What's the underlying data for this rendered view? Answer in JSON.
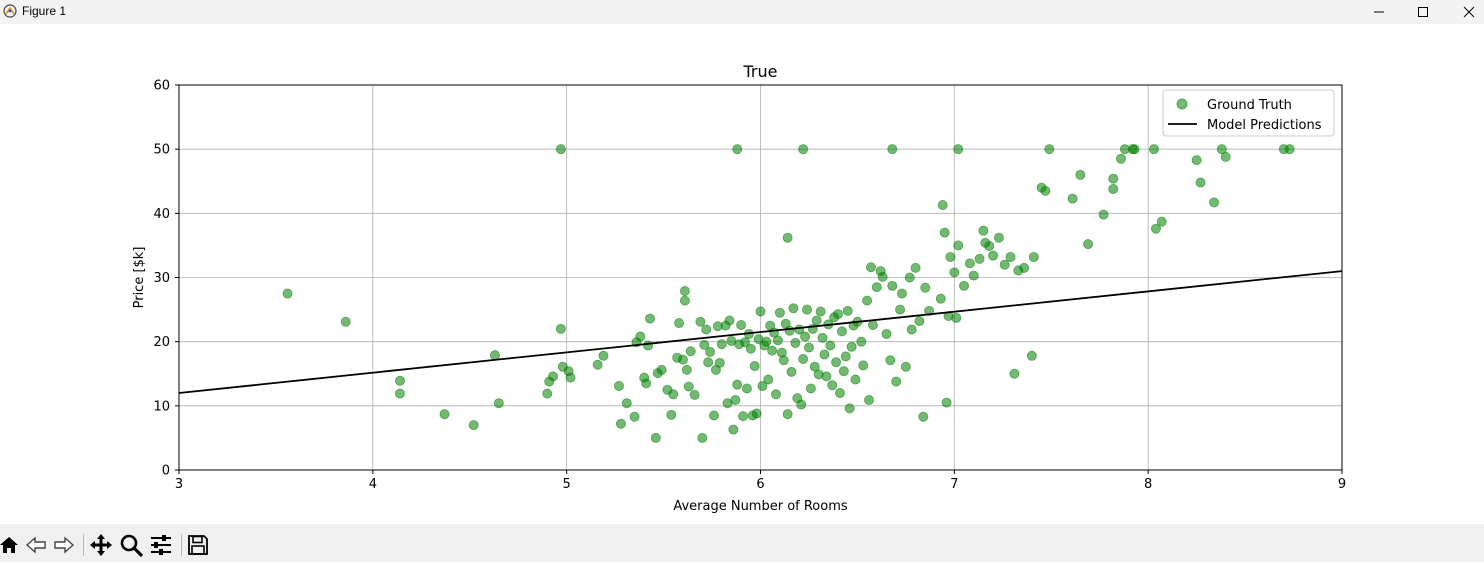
{
  "window": {
    "title": "Figure 1",
    "controls": [
      "minimize-icon",
      "maximize-icon",
      "close-icon"
    ]
  },
  "toolbar": {
    "buttons": [
      "home-icon",
      "back-icon",
      "forward-icon",
      "pan-icon",
      "zoom-icon",
      "configure-subplots-icon",
      "save-icon"
    ]
  },
  "colors": {
    "points": "#008000",
    "line": "#000000",
    "grid": "#b0b0b0"
  },
  "chart_data": {
    "type": "scatter",
    "title": "True",
    "xlabel": "Average Number of Rooms",
    "ylabel": "Price [$k]",
    "xlim": [
      3,
      9
    ],
    "ylim": [
      0,
      60
    ],
    "xticks": [
      "3",
      "4",
      "5",
      "6",
      "7",
      "8",
      "9"
    ],
    "yticks": [
      "0",
      "10",
      "20",
      "30",
      "40",
      "50",
      "60"
    ],
    "grid": true,
    "legend_position": "top-right",
    "series": [
      {
        "name": "Ground Truth",
        "kind": "scatter",
        "color": "#008000",
        "points": [
          [
            3.56,
            27.5
          ],
          [
            3.86,
            23.1
          ],
          [
            4.14,
            13.9
          ],
          [
            4.14,
            11.9
          ],
          [
            4.37,
            8.7
          ],
          [
            4.52,
            7.0
          ],
          [
            4.63,
            17.9
          ],
          [
            4.65,
            10.4
          ],
          [
            4.9,
            11.9
          ],
          [
            4.91,
            13.8
          ],
          [
            4.93,
            14.6
          ],
          [
            4.97,
            22.0
          ],
          [
            4.98,
            16.1
          ],
          [
            5.01,
            15.4
          ],
          [
            5.02,
            14.4
          ],
          [
            4.97,
            50.0
          ],
          [
            5.88,
            50.0
          ],
          [
            6.22,
            50.0
          ],
          [
            6.68,
            50.0
          ],
          [
            7.02,
            50.0
          ],
          [
            7.49,
            50.0
          ],
          [
            5.16,
            16.4
          ],
          [
            5.19,
            17.8
          ],
          [
            5.27,
            13.1
          ],
          [
            5.28,
            7.2
          ],
          [
            5.31,
            10.4
          ],
          [
            5.35,
            8.3
          ],
          [
            5.36,
            19.9
          ],
          [
            5.38,
            20.8
          ],
          [
            5.4,
            14.4
          ],
          [
            5.41,
            13.5
          ],
          [
            5.42,
            19.4
          ],
          [
            5.43,
            23.6
          ],
          [
            5.46,
            5.0
          ],
          [
            5.47,
            15.1
          ],
          [
            5.49,
            15.6
          ],
          [
            5.52,
            12.5
          ],
          [
            5.54,
            8.6
          ],
          [
            5.55,
            11.8
          ],
          [
            5.57,
            17.5
          ],
          [
            5.58,
            22.9
          ],
          [
            5.6,
            17.2
          ],
          [
            5.61,
            26.4
          ],
          [
            5.61,
            27.9
          ],
          [
            5.62,
            15.6
          ],
          [
            5.63,
            13.0
          ],
          [
            5.64,
            18.5
          ],
          [
            5.66,
            11.7
          ],
          [
            5.69,
            23.1
          ],
          [
            5.7,
            5.0
          ],
          [
            5.71,
            19.5
          ],
          [
            5.72,
            21.9
          ],
          [
            5.73,
            16.8
          ],
          [
            5.74,
            18.4
          ],
          [
            5.76,
            8.5
          ],
          [
            5.77,
            15.6
          ],
          [
            5.78,
            22.4
          ],
          [
            5.79,
            16.7
          ],
          [
            5.8,
            19.6
          ],
          [
            5.82,
            22.5
          ],
          [
            5.83,
            10.4
          ],
          [
            5.84,
            23.3
          ],
          [
            5.85,
            20.1
          ],
          [
            5.86,
            6.3
          ],
          [
            5.87,
            10.9
          ],
          [
            5.88,
            13.3
          ],
          [
            5.89,
            19.6
          ],
          [
            5.9,
            22.6
          ],
          [
            5.91,
            8.4
          ],
          [
            5.92,
            19.9
          ],
          [
            5.93,
            12.7
          ],
          [
            5.94,
            21.2
          ],
          [
            5.95,
            18.9
          ],
          [
            5.96,
            8.5
          ],
          [
            5.97,
            16.2
          ],
          [
            5.98,
            8.8
          ],
          [
            5.99,
            20.4
          ],
          [
            6.0,
            24.7
          ],
          [
            6.01,
            13.1
          ],
          [
            6.02,
            19.4
          ],
          [
            6.03,
            20.0
          ],
          [
            6.04,
            14.1
          ],
          [
            6.05,
            22.5
          ],
          [
            6.06,
            18.6
          ],
          [
            6.07,
            21.4
          ],
          [
            6.08,
            11.8
          ],
          [
            6.09,
            20.2
          ],
          [
            6.1,
            24.5
          ],
          [
            6.11,
            18.3
          ],
          [
            6.12,
            17.1
          ],
          [
            6.13,
            22.8
          ],
          [
            6.14,
            8.7
          ],
          [
            6.14,
            36.2
          ],
          [
            6.15,
            21.7
          ],
          [
            6.16,
            15.3
          ],
          [
            6.17,
            25.2
          ],
          [
            6.18,
            19.8
          ],
          [
            6.19,
            11.2
          ],
          [
            6.2,
            21.9
          ],
          [
            6.21,
            10.2
          ],
          [
            6.22,
            17.3
          ],
          [
            6.23,
            20.8
          ],
          [
            6.24,
            25.0
          ],
          [
            6.25,
            19.1
          ],
          [
            6.26,
            12.7
          ],
          [
            6.27,
            22.0
          ],
          [
            6.28,
            16.1
          ],
          [
            6.29,
            23.3
          ],
          [
            6.3,
            14.9
          ],
          [
            6.31,
            24.7
          ],
          [
            6.32,
            20.6
          ],
          [
            6.33,
            18.0
          ],
          [
            6.34,
            14.6
          ],
          [
            6.35,
            22.7
          ],
          [
            6.36,
            19.4
          ],
          [
            6.37,
            13.2
          ],
          [
            6.38,
            23.8
          ],
          [
            6.39,
            16.8
          ],
          [
            6.4,
            24.3
          ],
          [
            6.41,
            12.0
          ],
          [
            6.42,
            21.6
          ],
          [
            6.43,
            15.4
          ],
          [
            6.44,
            17.7
          ],
          [
            6.45,
            24.8
          ],
          [
            6.46,
            9.6
          ],
          [
            6.47,
            19.2
          ],
          [
            6.48,
            22.5
          ],
          [
            6.49,
            14.1
          ],
          [
            6.5,
            23.1
          ],
          [
            6.52,
            20.0
          ],
          [
            6.53,
            16.3
          ],
          [
            6.55,
            26.4
          ],
          [
            6.56,
            10.9
          ],
          [
            6.57,
            31.6
          ],
          [
            6.58,
            22.6
          ],
          [
            6.6,
            28.5
          ],
          [
            6.62,
            31.0
          ],
          [
            6.63,
            30.1
          ],
          [
            6.65,
            21.2
          ],
          [
            6.67,
            17.1
          ],
          [
            6.68,
            28.7
          ],
          [
            6.7,
            13.8
          ],
          [
            6.72,
            25.0
          ],
          [
            6.73,
            27.5
          ],
          [
            6.75,
            16.1
          ],
          [
            6.77,
            30.0
          ],
          [
            6.78,
            21.9
          ],
          [
            6.8,
            31.5
          ],
          [
            6.82,
            23.2
          ],
          [
            6.84,
            8.3
          ],
          [
            6.85,
            28.4
          ],
          [
            6.87,
            24.8
          ],
          [
            6.93,
            26.7
          ],
          [
            6.94,
            41.3
          ],
          [
            6.95,
            37.0
          ],
          [
            6.96,
            10.5
          ],
          [
            6.97,
            24.0
          ],
          [
            6.98,
            33.2
          ],
          [
            7.0,
            30.8
          ],
          [
            7.01,
            23.7
          ],
          [
            7.02,
            35.0
          ],
          [
            7.05,
            28.7
          ],
          [
            7.08,
            32.2
          ],
          [
            7.1,
            30.3
          ],
          [
            7.13,
            32.9
          ],
          [
            7.15,
            37.3
          ],
          [
            7.16,
            35.4
          ],
          [
            7.18,
            34.9
          ],
          [
            7.2,
            33.4
          ],
          [
            7.23,
            36.2
          ],
          [
            7.26,
            32.0
          ],
          [
            7.29,
            33.2
          ],
          [
            7.31,
            15.0
          ],
          [
            7.33,
            31.1
          ],
          [
            7.36,
            31.5
          ],
          [
            7.4,
            17.8
          ],
          [
            7.41,
            33.2
          ],
          [
            7.45,
            44.0
          ],
          [
            7.47,
            43.5
          ],
          [
            7.61,
            42.3
          ],
          [
            7.65,
            46.0
          ],
          [
            7.69,
            35.2
          ],
          [
            7.77,
            39.8
          ],
          [
            7.82,
            45.4
          ],
          [
            7.82,
            43.8
          ],
          [
            7.86,
            48.5
          ],
          [
            7.88,
            50.0
          ],
          [
            7.92,
            50.0
          ],
          [
            7.93,
            50.0
          ],
          [
            8.03,
            50.0
          ],
          [
            8.04,
            37.6
          ],
          [
            8.07,
            38.7
          ],
          [
            8.25,
            48.3
          ],
          [
            8.27,
            44.8
          ],
          [
            8.34,
            41.7
          ],
          [
            8.38,
            50.0
          ],
          [
            8.4,
            48.8
          ],
          [
            8.7,
            50.0
          ],
          [
            8.73,
            50.0
          ]
        ]
      },
      {
        "name": "Model Predictions",
        "kind": "line",
        "color": "#000000",
        "points": [
          [
            3,
            12.0
          ],
          [
            9,
            31.0
          ]
        ]
      }
    ]
  }
}
